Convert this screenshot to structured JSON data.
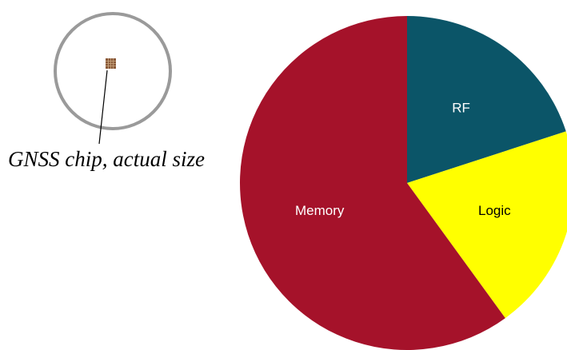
{
  "chart_data": {
    "type": "pie",
    "annotation": "GNSS chip, actual size",
    "categories": [
      "RF",
      "Logic",
      "Memory"
    ],
    "values": [
      20,
      20,
      60
    ],
    "colors": [
      "#0b5568",
      "#ffff00",
      "#a5122a"
    ],
    "label_colors": [
      "#ffffff",
      "#000000",
      "#ffffff"
    ]
  }
}
